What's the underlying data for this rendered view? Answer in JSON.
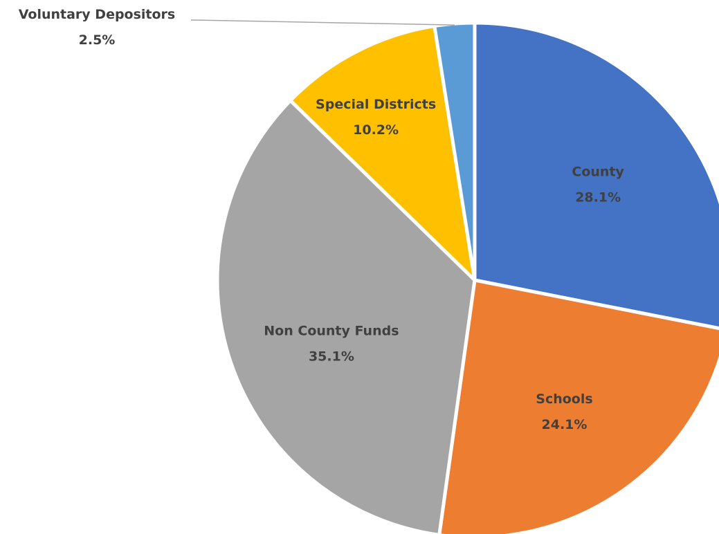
{
  "chart_data": {
    "type": "pie",
    "title": "",
    "slices": [
      {
        "label": "County",
        "value": 28.1,
        "value_label": "28.1%",
        "color": "#4472C4"
      },
      {
        "label": "Schools",
        "value": 24.1,
        "value_label": "24.1%",
        "color": "#ED7D31"
      },
      {
        "label": "Non County Funds",
        "value": 35.1,
        "value_label": "35.1%",
        "color": "#A5A5A5"
      },
      {
        "label": "Special Districts",
        "value": 10.2,
        "value_label": "10.2%",
        "color": "#FFC000"
      },
      {
        "label": "Voluntary Depositors",
        "value": 2.5,
        "value_label": "2.5%",
        "color": "#5B9BD5"
      }
    ],
    "start_angle": "12 o'clock",
    "direction": "clockwise",
    "legend": "none",
    "labels": "category name and percentage on slices",
    "callout_slice": "Voluntary Depositors"
  }
}
